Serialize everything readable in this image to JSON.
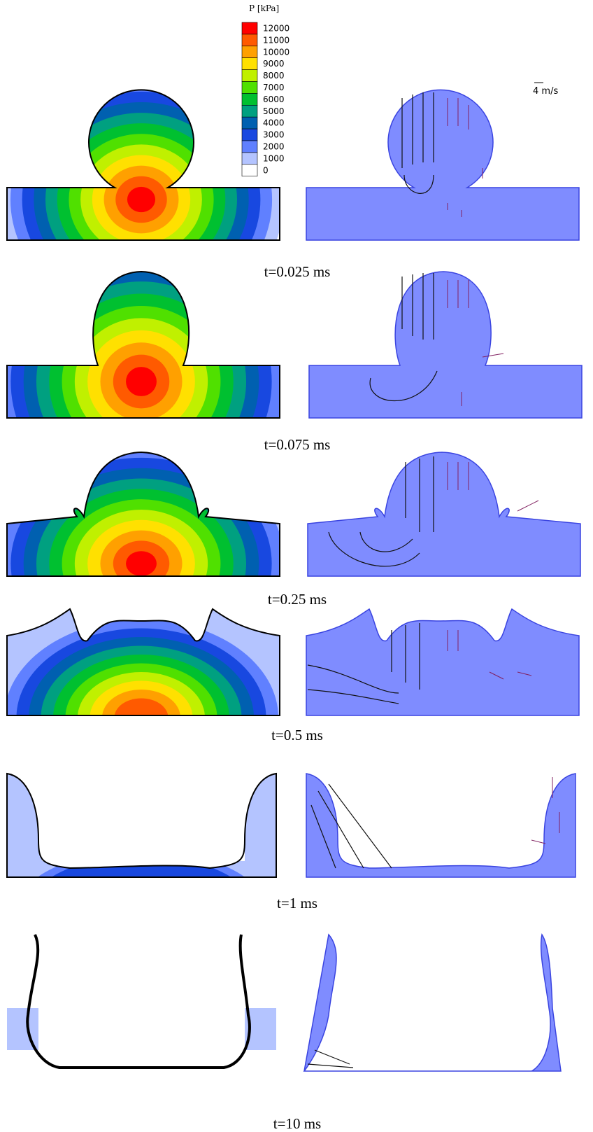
{
  "legend": {
    "title": "P  [kPa]",
    "levels": [
      {
        "value": 12000,
        "color": "#ff0000"
      },
      {
        "value": 11000,
        "color": "#ff5a00"
      },
      {
        "value": 10000,
        "color": "#ffa000"
      },
      {
        "value": 9000,
        "color": "#ffe000"
      },
      {
        "value": 8000,
        "color": "#c0f000"
      },
      {
        "value": 7000,
        "color": "#50e000"
      },
      {
        "value": 6000,
        "color": "#00c030"
      },
      {
        "value": 5000,
        "color": "#00a080"
      },
      {
        "value": 4000,
        "color": "#0060b0"
      },
      {
        "value": 3000,
        "color": "#1848e0"
      },
      {
        "value": 2000,
        "color": "#6080ff"
      },
      {
        "value": 1000,
        "color": "#b4c4ff"
      },
      {
        "value": 0,
        "color": "#ffffff"
      }
    ]
  },
  "velocity_scale": "4 m/s",
  "frames": [
    {
      "time_label": "t=0.025 ms"
    },
    {
      "time_label": "t=0.075 ms"
    },
    {
      "time_label": "t=0.25 ms"
    },
    {
      "time_label": "t=0.5 ms"
    },
    {
      "time_label": "t=1 ms"
    },
    {
      "time_label": "t=10 ms"
    }
  ]
}
